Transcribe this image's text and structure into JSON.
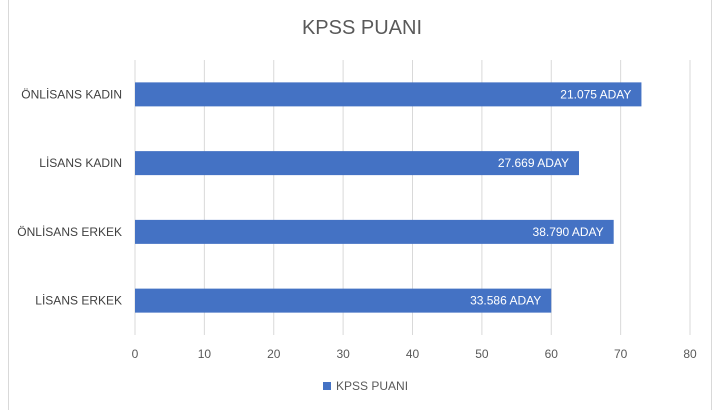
{
  "chart_data": {
    "type": "bar",
    "orientation": "horizontal",
    "title": "KPSS PUANI",
    "categories": [
      "ÖNLİSANS KADIN",
      "LİSANS KADIN",
      "ÖNLİSANS ERKEK",
      "LİSANS ERKEK"
    ],
    "series": [
      {
        "name": "KPSS PUANI",
        "values": [
          73,
          64,
          69,
          60
        ],
        "data_labels": [
          "21.075 ADAY",
          "27.669 ADAY",
          "38.790 ADAY",
          "33.586 ADAY"
        ],
        "color": "#4472c4"
      }
    ],
    "xlim": [
      0,
      80
    ],
    "x_ticks": [
      0,
      10,
      20,
      30,
      40,
      50,
      60,
      70,
      80
    ],
    "grid": true,
    "legend_position": "bottom"
  }
}
